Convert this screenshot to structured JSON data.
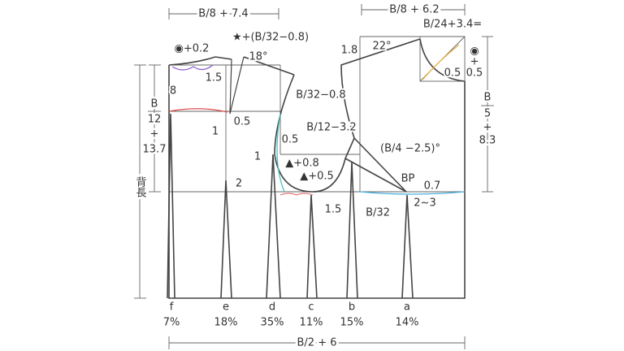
{
  "dimensions": {
    "back_width": "B/8 + 7.4",
    "front_width": "B/8 + 6.2",
    "total_width": "B/2 + 6",
    "back_length": "背長"
  },
  "left_fraction": [
    "B",
    "12",
    "+",
    "13.7"
  ],
  "right_fraction": [
    "B",
    "5",
    "+",
    "8.3"
  ],
  "annotations": [
    "◉+0.2",
    "★+(B/32−0.8)",
    "18°",
    "1.5",
    "8",
    "B/32−0.8",
    "0.5",
    "1",
    "1",
    "0.5",
    "▲+0.8",
    "▲+0.5",
    "1.5",
    "B/32",
    "B/12−3.2",
    "(B/4 −2.5)°",
    "BP",
    "0.7",
    "2~3",
    "1.8",
    "22°",
    "B/24+3.4=",
    "◉",
    "+",
    "0.5",
    "0.5",
    "2"
  ],
  "darts": [
    {
      "letter": "f",
      "percent": "7%"
    },
    {
      "letter": "e",
      "percent": "18%"
    },
    {
      "letter": "d",
      "percent": "35%"
    },
    {
      "letter": "c",
      "percent": "11%"
    },
    {
      "letter": "b",
      "percent": "15%"
    },
    {
      "letter": "a",
      "percent": "14%"
    }
  ]
}
